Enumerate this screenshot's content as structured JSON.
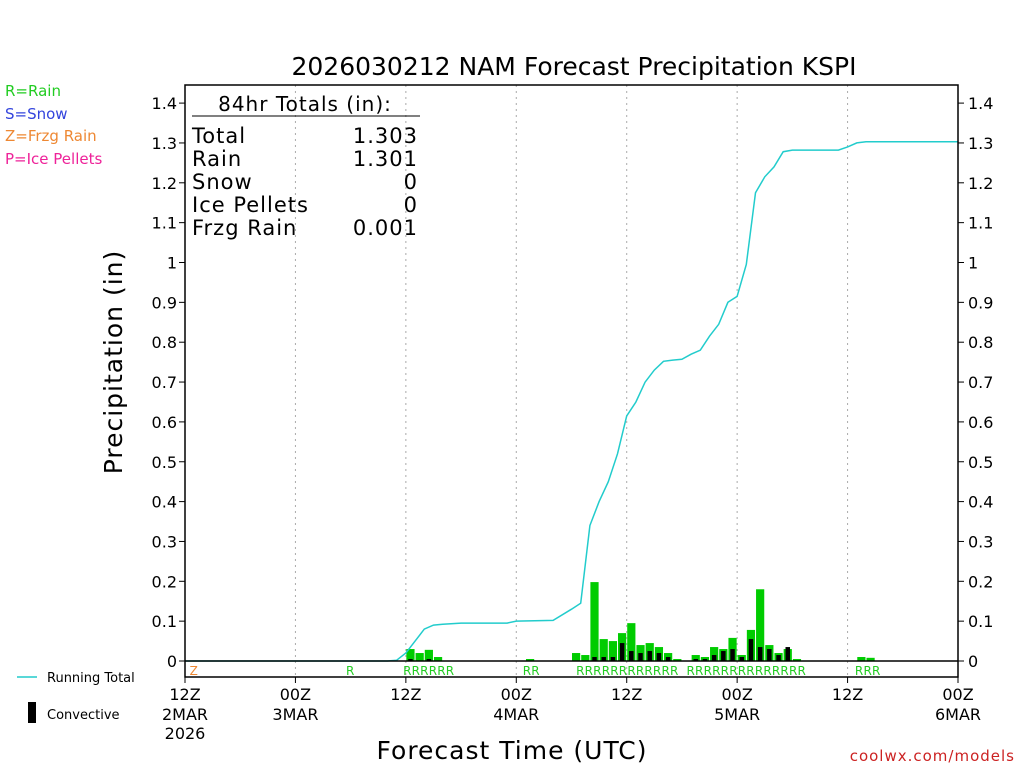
{
  "chart_data": {
    "type": "bar",
    "title": "2026030212 NAM Forecast Precipitation KSPI",
    "xlabel": "Forecast Time (UTC)",
    "ylabel": "Precipitation (in)",
    "ylim": [
      0,
      1.4
    ],
    "xlim_hours": [
      0,
      84
    ],
    "y_ticks": [
      "0",
      "0.1",
      "0.2",
      "0.3",
      "0.4",
      "0.5",
      "0.6",
      "0.7",
      "0.8",
      "0.9",
      "1",
      "1.1",
      "1.2",
      "1.3",
      "1.4"
    ],
    "x_ticks": [
      {
        "hour": 0,
        "time": "12Z",
        "date": "2MAR",
        "year": "2026"
      },
      {
        "hour": 12,
        "time": "00Z",
        "date": "3MAR",
        "year": ""
      },
      {
        "hour": 24,
        "time": "12Z",
        "date": "",
        "year": ""
      },
      {
        "hour": 36,
        "time": "00Z",
        "date": "4MAR",
        "year": ""
      },
      {
        "hour": 48,
        "time": "12Z",
        "date": "",
        "year": ""
      },
      {
        "hour": 60,
        "time": "00Z",
        "date": "5MAR",
        "year": ""
      },
      {
        "hour": 72,
        "time": "12Z",
        "date": "",
        "year": ""
      },
      {
        "hour": 84,
        "time": "00Z",
        "date": "6MAR",
        "year": ""
      }
    ],
    "legend_types": [
      {
        "label": "R=Rain",
        "color": "#22cc22"
      },
      {
        "label": "S=Snow",
        "color": "#3344dd"
      },
      {
        "label": "Z=Frzg Rain",
        "color": "#ee8833"
      },
      {
        "label": "P=Ice Pellets",
        "color": "#ee2299"
      }
    ],
    "legend_series": {
      "running_total": "Running Total",
      "convective": "Convective"
    },
    "totals": {
      "header": "84hr Totals (in):",
      "rows": [
        {
          "label": "Total",
          "value": "1.303"
        },
        {
          "label": "Rain",
          "value": "1.301"
        },
        {
          "label": "Snow",
          "value": "0"
        },
        {
          "label": "Ice Pellets",
          "value": "0"
        },
        {
          "label": "Frzg Rain",
          "value": "0.001"
        }
      ]
    },
    "bar_hours": [
      24,
      25,
      26,
      27,
      37,
      42,
      43,
      44,
      45,
      46,
      47,
      48,
      49,
      50,
      51,
      52,
      53,
      55,
      56,
      57,
      58,
      59,
      60,
      61,
      62,
      63,
      64,
      65,
      66,
      73,
      74
    ],
    "precip": [
      0.03,
      0.02,
      0.028,
      0.01,
      0.005,
      0.02,
      0.015,
      0.198,
      0.055,
      0.05,
      0.07,
      0.095,
      0.04,
      0.045,
      0.035,
      0.02,
      0.005,
      0.015,
      0.01,
      0.035,
      0.03,
      0.058,
      0.015,
      0.078,
      0.18,
      0.04,
      0.02,
      0.03,
      0.005,
      0.01,
      0.008
    ],
    "convective": [
      0.005,
      0.0,
      0.005,
      0.0,
      0.0,
      0.0,
      0.0,
      0.01,
      0.01,
      0.01,
      0.045,
      0.025,
      0.02,
      0.025,
      0.02,
      0.01,
      0.0,
      0.005,
      0.005,
      0.015,
      0.025,
      0.03,
      0.01,
      0.055,
      0.035,
      0.03,
      0.015,
      0.035,
      0.0,
      0.0,
      0.0
    ],
    "running_total": {
      "hours": [
        0,
        22,
        23,
        24,
        25,
        26,
        27,
        28,
        30,
        35,
        36,
        40,
        42,
        43,
        44,
        45,
        46,
        47,
        48,
        49,
        50,
        51,
        52,
        53,
        54,
        55,
        56,
        57,
        58,
        59,
        60,
        61,
        62,
        63,
        64,
        65,
        66,
        67,
        70,
        71,
        72,
        73,
        74,
        84
      ],
      "values": [
        0,
        0,
        0.002,
        0.02,
        0.05,
        0.08,
        0.09,
        0.092,
        0.095,
        0.095,
        0.1,
        0.102,
        0.13,
        0.145,
        0.34,
        0.4,
        0.45,
        0.52,
        0.615,
        0.65,
        0.7,
        0.73,
        0.752,
        0.755,
        0.757,
        0.77,
        0.78,
        0.815,
        0.845,
        0.9,
        0.915,
        0.995,
        1.175,
        1.215,
        1.24,
        1.278,
        1.282,
        1.282,
        1.282,
        1.282,
        1.29,
        1.3,
        1.303,
        1.303
      ]
    },
    "type_marks": [
      {
        "hour": 0.5,
        "chars": "Z",
        "color": "#ee8833"
      },
      {
        "hour": 17.5,
        "chars": "R",
        "color": "#22cc22"
      },
      {
        "hour": 23.7,
        "chars": "RRRRRR",
        "color": "#22cc22"
      },
      {
        "hour": 36.7,
        "chars": "RR",
        "color": "#22cc22"
      },
      {
        "hour": 42.5,
        "chars": "RRRRRRRRRRRR",
        "color": "#22cc22"
      },
      {
        "hour": 54.5,
        "chars": "RRRRRRRRRRRRRR",
        "color": "#22cc22"
      },
      {
        "hour": 72.8,
        "chars": "RRR",
        "color": "#22cc22"
      }
    ],
    "colors": {
      "rain_bar": "#00cc00",
      "convective_bar": "#000000",
      "running_total": "#22cccc",
      "grid": "#aaaaaa",
      "footer": "#cc2222"
    }
  },
  "footer": "coolwx.com/models"
}
